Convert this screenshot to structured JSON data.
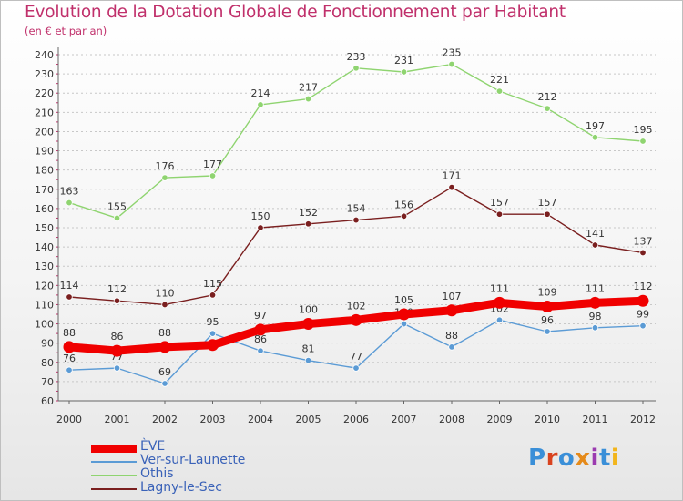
{
  "title": "Evolution de la Dotation Globale de Fonctionnement par Habitant",
  "subtitle": "(en € et par an)",
  "colors": {
    "title": "#c0306b",
    "axis_text": "#333333",
    "legend_text": "#3a62b8",
    "grid": "#c8c8c8"
  },
  "logo": {
    "text": "Proxiti",
    "letter_colors": [
      "#3a8fd8",
      "#d9431f",
      "#3a8fd8",
      "#e58a1a",
      "#9b3bb0",
      "#3a8fd8",
      "#f2b51c"
    ]
  },
  "chart_data": {
    "type": "line",
    "title": "Evolution de la Dotation Globale de Fonctionnement par Habitant",
    "subtitle": "(en € et par an)",
    "xlabel": "",
    "ylabel": "",
    "x": [
      2000,
      2001,
      2002,
      2003,
      2004,
      2005,
      2006,
      2007,
      2008,
      2009,
      2010,
      2011,
      2012
    ],
    "ylim": [
      60,
      240
    ],
    "ytick_step": 10,
    "grid": "horizontal dashed",
    "legend_position": "bottom-left",
    "series": [
      {
        "name": "ÈVE",
        "color": "#f00000",
        "stroke": "thick",
        "values": [
          88,
          86,
          88,
          89,
          97,
          100,
          102,
          105,
          107,
          111,
          109,
          111,
          112
        ],
        "labels": [
          "88",
          "86",
          "88",
          "",
          "97",
          "100",
          "102",
          "105",
          "107",
          "111",
          "109",
          "111",
          "112"
        ]
      },
      {
        "name": "Ver-sur-Launette",
        "color": "#5b9bd5",
        "stroke": "thin",
        "values": [
          76,
          77,
          69,
          95,
          86,
          81,
          77,
          100,
          88,
          102,
          96,
          98,
          99
        ],
        "labels": [
          "76",
          "77",
          "69",
          "95",
          "86",
          "81",
          "77",
          "100",
          "88",
          "102",
          "96",
          "98",
          "99"
        ]
      },
      {
        "name": "Othis",
        "color": "#8fd470",
        "stroke": "thin",
        "values": [
          163,
          155,
          176,
          177,
          214,
          217,
          233,
          231,
          235,
          221,
          212,
          197,
          195
        ],
        "labels": [
          "163",
          "155",
          "176",
          "177",
          "214",
          "217",
          "233",
          "231",
          "235",
          "221",
          "212",
          "197",
          "195"
        ]
      },
      {
        "name": "Lagny-le-Sec",
        "color": "#7a1f1f",
        "stroke": "thin",
        "values": [
          114,
          112,
          110,
          115,
          150,
          152,
          154,
          156,
          171,
          157,
          157,
          141,
          137
        ],
        "labels": [
          "114",
          "112",
          "110",
          "115",
          "150",
          "152",
          "154",
          "156",
          "171",
          "157",
          "157",
          "141",
          "137"
        ]
      }
    ]
  }
}
